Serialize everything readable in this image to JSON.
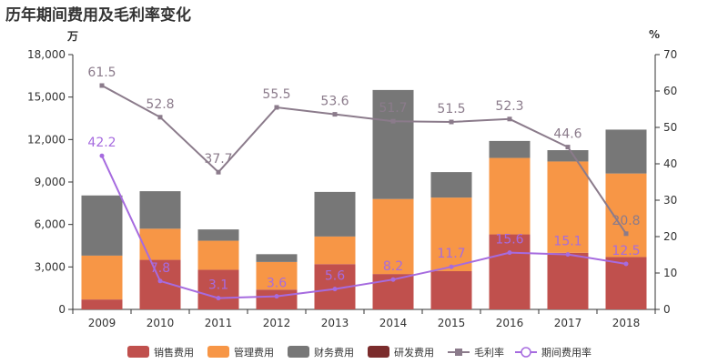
{
  "title": "历年期间费用及毛利率变化",
  "left_unit": "万",
  "right_unit": "%",
  "chart_data": {
    "type": "bar",
    "stacked": true,
    "categories": [
      "2009",
      "2010",
      "2011",
      "2012",
      "2013",
      "2014",
      "2015",
      "2016",
      "2017",
      "2018"
    ],
    "left_axis": {
      "min": 0,
      "max": 18000,
      "ticks": [
        "0",
        "3,000",
        "6,000",
        "9,000",
        "12,000",
        "15,000",
        "18,000"
      ],
      "tick_values": [
        0,
        3000,
        6000,
        9000,
        12000,
        15000,
        18000
      ]
    },
    "right_axis": {
      "min": 0,
      "max": 70,
      "ticks": [
        "0",
        "10",
        "20",
        "30",
        "40",
        "50",
        "60",
        "70"
      ],
      "tick_values": [
        0,
        10,
        20,
        30,
        40,
        50,
        60,
        70
      ]
    },
    "series": [
      {
        "name": "销售费用",
        "kind": "bar",
        "color": "#c0504d",
        "values": [
          700,
          3500,
          2800,
          1400,
          3200,
          2500,
          2700,
          5300,
          4000,
          3700
        ]
      },
      {
        "name": "管理费用",
        "kind": "bar",
        "color": "#f79646",
        "values": [
          3100,
          2200,
          2050,
          1950,
          1950,
          5300,
          5200,
          5400,
          6450,
          5900
        ]
      },
      {
        "name": "财务费用",
        "kind": "bar",
        "color": "#777777",
        "values": [
          4250,
          2650,
          800,
          550,
          3150,
          7700,
          1800,
          1200,
          800,
          3100
        ]
      },
      {
        "name": "研发费用",
        "kind": "bar",
        "color": "#7b2c2c",
        "values": [
          0,
          0,
          0,
          0,
          0,
          0,
          0,
          0,
          0,
          0
        ]
      },
      {
        "name": "毛利率",
        "kind": "line",
        "axis": "right",
        "color": "#8b7b8b",
        "label_color": "#8b7b8b",
        "marker": "square",
        "values": [
          61.5,
          52.8,
          37.7,
          55.5,
          53.6,
          51.7,
          51.5,
          52.3,
          44.6,
          20.8
        ],
        "labels": [
          "61.5",
          "52.8",
          "37.7",
          "55.5",
          "53.6",
          "51.7",
          "51.5",
          "52.3",
          "44.6",
          "20.8"
        ]
      },
      {
        "name": "期间费用率",
        "kind": "line",
        "axis": "right",
        "color": "#a66bdf",
        "label_color": "#a66bdf",
        "marker": "circle",
        "values": [
          42.2,
          7.8,
          3.1,
          3.6,
          5.6,
          8.2,
          11.7,
          15.6,
          15.1,
          12.5
        ],
        "labels": [
          "42.2",
          "7.8",
          "3.1",
          "3.6",
          "5.6",
          "8.2",
          "11.7",
          "15.6",
          "15.1",
          "12.5"
        ]
      }
    ],
    "legend_position": "bottom",
    "grid": false
  }
}
